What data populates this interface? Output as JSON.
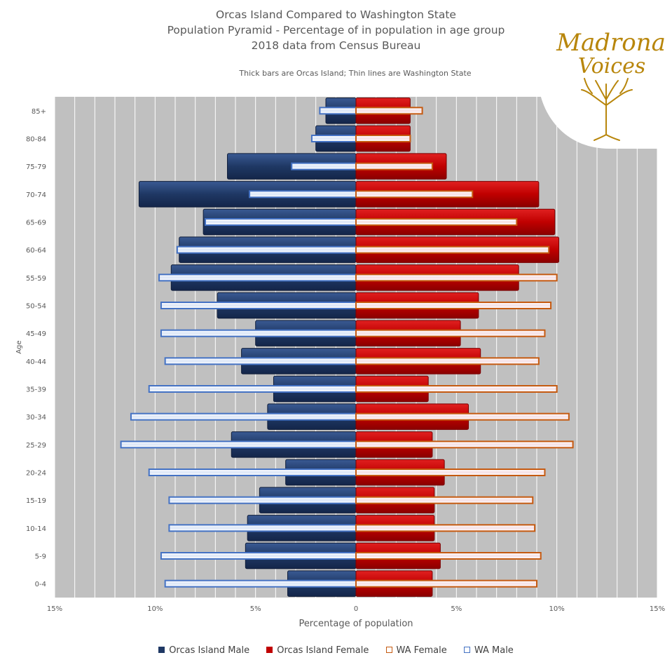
{
  "chart_data": {
    "type": "bar",
    "orientation": "horizontal",
    "title_lines": [
      "Orcas Island Compared to Washington State",
      "Population Pyramid - Percentage of in population in age group",
      "2018 data from Census Bureau"
    ],
    "subtitle": "Thick bars are Orcas Island; Thin lines are Washington State",
    "xlabel": "Percentage of population",
    "ylabel": "Age",
    "xlim": [
      -15,
      15
    ],
    "x_ticks": [
      "15%",
      "10%",
      "5%",
      "0",
      "5%",
      "10%",
      "15%"
    ],
    "categories": [
      "85+",
      "80-84",
      "75-79",
      "70-74",
      "65-69",
      "60-64",
      "55-59",
      "50-54",
      "45-49",
      "40-44",
      "35-39",
      "30-34",
      "25-29",
      "20-24",
      "15-19",
      "10-14",
      "5-9",
      "0-4"
    ],
    "series": [
      {
        "name": "Orcas Island Male",
        "side": "left",
        "color": "#1f3864",
        "values": [
          1.5,
          2.0,
          6.4,
          10.8,
          7.6,
          8.8,
          9.2,
          6.9,
          5.0,
          5.7,
          4.1,
          4.4,
          6.2,
          3.5,
          4.8,
          5.4,
          5.5,
          3.4
        ]
      },
      {
        "name": "Orcas Island Female",
        "side": "right",
        "color": "#c00000",
        "values": [
          2.7,
          2.7,
          4.5,
          9.1,
          9.9,
          10.1,
          8.1,
          6.1,
          5.2,
          6.2,
          3.6,
          5.6,
          3.8,
          4.4,
          3.9,
          3.9,
          4.2,
          3.8
        ]
      },
      {
        "name": "WA Female",
        "side": "right",
        "color": "#c55a11",
        "values": [
          3.3,
          2.7,
          3.8,
          5.8,
          8.0,
          9.6,
          10.0,
          9.7,
          9.4,
          9.1,
          10.0,
          10.6,
          10.8,
          9.4,
          8.8,
          8.9,
          9.2,
          9.0
        ]
      },
      {
        "name": "WA Male",
        "side": "left",
        "color": "#4472c4",
        "values": [
          1.8,
          2.2,
          3.2,
          5.3,
          7.5,
          8.9,
          9.8,
          9.7,
          9.7,
          9.5,
          10.3,
          11.2,
          11.7,
          10.3,
          9.3,
          9.3,
          9.7,
          9.5
        ]
      }
    ],
    "grid": true,
    "legend": "bottom"
  },
  "logo": {
    "line1": "Madrona",
    "line2": "Voices"
  },
  "colors": {
    "plot_bg": "#c0c0c0",
    "grid": "#ffffff",
    "orcas_male": "#1f3864",
    "orcas_female": "#c00000",
    "wa_female": "#c55a11",
    "wa_male": "#4472c4"
  }
}
